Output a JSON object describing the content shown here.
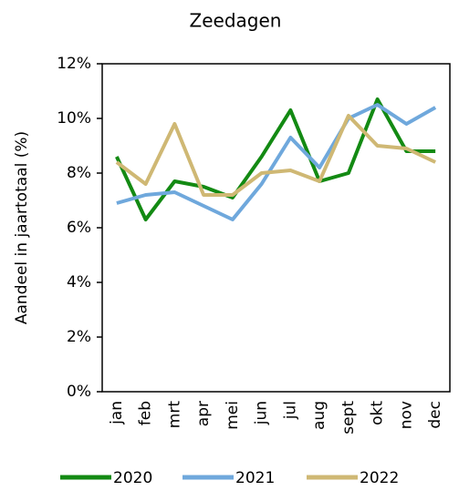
{
  "chart_data": {
    "type": "line",
    "title": "Zeedagen",
    "y_label": "Aandeel in jaartotaal (%)",
    "categories": [
      "jan",
      "feb",
      "mrt",
      "apr",
      "mei",
      "jun",
      "jul",
      "aug",
      "sept",
      "okt",
      "nov",
      "dec"
    ],
    "series": [
      {
        "name": "2020",
        "color": "#138a13",
        "values": [
          8.6,
          6.3,
          7.7,
          7.5,
          7.1,
          8.6,
          10.3,
          7.7,
          8.0,
          10.7,
          8.8,
          8.8
        ]
      },
      {
        "name": "2021",
        "color": "#6fa8dc",
        "values": [
          6.9,
          7.2,
          7.3,
          6.8,
          6.3,
          7.6,
          9.3,
          8.2,
          10.0,
          10.5,
          9.8,
          10.4
        ]
      },
      {
        "name": "2022",
        "color": "#cfb874",
        "values": [
          8.4,
          7.6,
          9.8,
          7.2,
          7.2,
          8.0,
          8.1,
          7.7,
          10.1,
          9.0,
          8.9,
          8.4
        ]
      }
    ],
    "ylim": [
      0,
      12
    ],
    "yticks": [
      {
        "value": 0,
        "label": "0%"
      },
      {
        "value": 2,
        "label": "2%"
      },
      {
        "value": 4,
        "label": "4%"
      },
      {
        "value": 6,
        "label": "6%"
      },
      {
        "value": 8,
        "label": "8%"
      },
      {
        "value": 10,
        "label": "10%"
      },
      {
        "value": 12,
        "label": "12%"
      }
    ],
    "legend": "bottom"
  }
}
